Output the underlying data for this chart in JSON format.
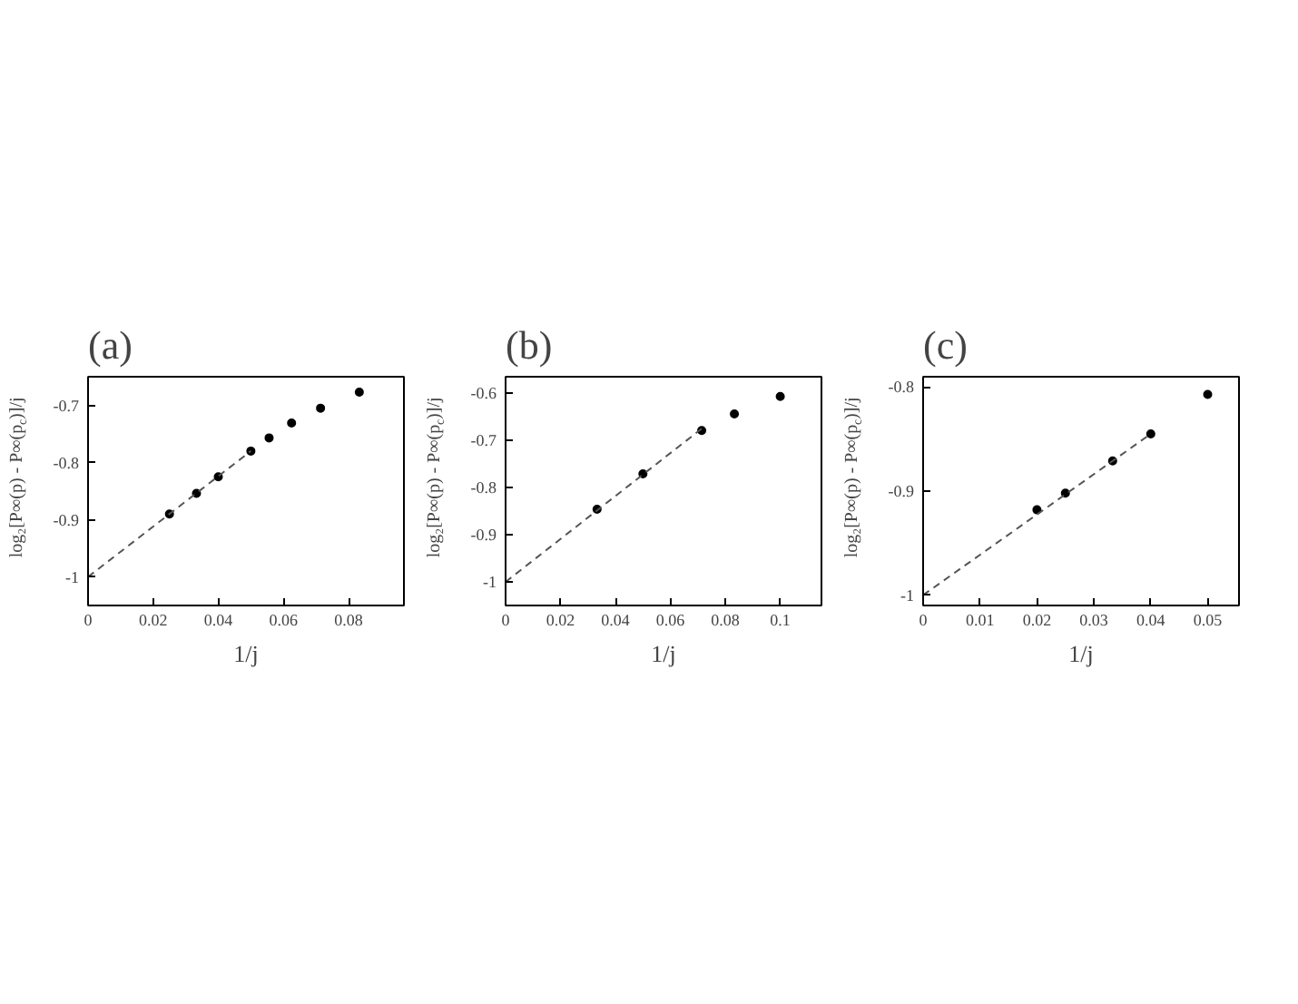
{
  "chart_data": [
    {
      "type": "scatter",
      "title": "(a)",
      "xlabel": "1/j",
      "ylabel": "log₂[P∞(p) - P∞(p$_{c}$)]/j",
      "xlim": [
        0,
        0.097
      ],
      "ylim": [
        -1.05,
        -0.65
      ],
      "xticks": [
        0,
        0.02,
        0.04,
        0.06,
        0.08
      ],
      "yticks": [
        -1,
        -0.9,
        -0.8,
        -0.7
      ],
      "grid": false,
      "series": [
        {
          "color": "#000000",
          "marker": "circle",
          "x": [
            0.025,
            0.0333,
            0.04,
            0.05,
            0.0556,
            0.0625,
            0.0714,
            0.0833
          ],
          "values": [
            -0.89,
            -0.854,
            -0.825,
            -0.78,
            -0.757,
            -0.731,
            -0.705,
            -0.677
          ]
        },
        {
          "type": "line",
          "line_style": "dashed",
          "color": "#555555",
          "x": [
            0,
            0.05
          ],
          "values": [
            -1,
            -0.78
          ]
        }
      ]
    },
    {
      "type": "scatter",
      "title": "(b)",
      "xlabel": "1/j",
      "ylabel": "log₂[P∞(p) - P∞(p$_{c}$)]/j",
      "xlim": [
        0,
        0.115
      ],
      "ylim": [
        -1.05,
        -0.565
      ],
      "xticks": [
        0,
        0.02,
        0.04,
        0.06,
        0.08,
        0.1
      ],
      "yticks": [
        -1,
        -0.9,
        -0.8,
        -0.7,
        -0.6
      ],
      "grid": false,
      "series": [
        {
          "color": "#000000",
          "marker": "circle",
          "x": [
            0.0333,
            0.05,
            0.0714,
            0.0833,
            0.1
          ],
          "values": [
            -0.846,
            -0.771,
            -0.679,
            -0.644,
            -0.607
          ]
        },
        {
          "type": "line",
          "line_style": "dashed",
          "color": "#555555",
          "x": [
            0,
            0.0714
          ],
          "values": [
            -1,
            -0.675
          ]
        }
      ]
    },
    {
      "type": "scatter",
      "title": "(c)",
      "xlabel": "1/j",
      "ylabel": "log₂[P∞(p) - P∞(p$_{c}$)]/j",
      "xlim": [
        0,
        0.0555
      ],
      "ylim": [
        -1.01,
        -0.79
      ],
      "xticks": [
        0,
        0.01,
        0.02,
        0.03,
        0.04,
        0.05
      ],
      "yticks": [
        -1,
        -0.9,
        -0.8
      ],
      "grid": false,
      "series": [
        {
          "color": "#000000",
          "marker": "circle",
          "x": [
            0.02,
            0.025,
            0.0333,
            0.04,
            0.05
          ],
          "values": [
            -0.918,
            -0.902,
            -0.871,
            -0.845,
            -0.807
          ]
        },
        {
          "type": "line",
          "line_style": "dashed",
          "color": "#555555",
          "x": [
            0,
            0.04
          ],
          "values": [
            -1,
            -0.845
          ]
        }
      ]
    }
  ]
}
